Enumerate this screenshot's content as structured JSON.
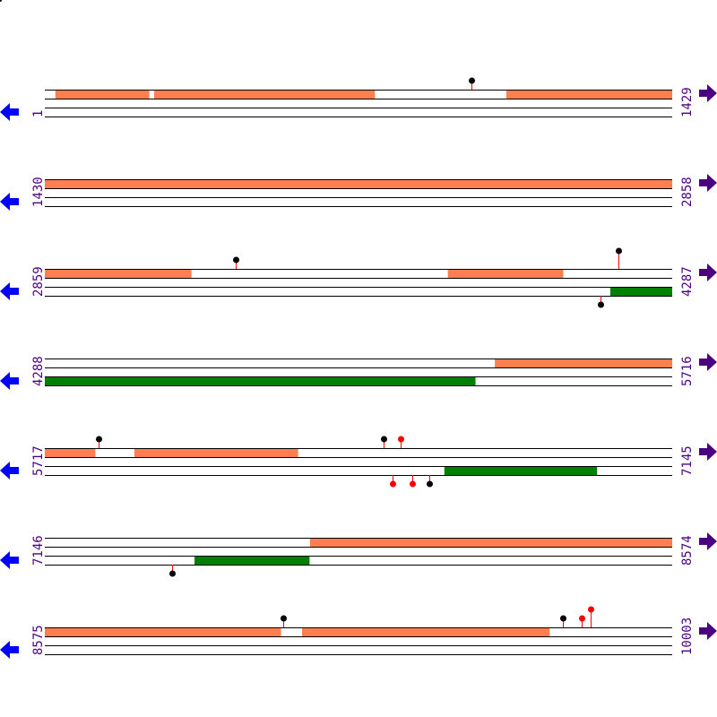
{
  "colors": {
    "forward_feature": "#ff7f50",
    "reverse_feature": "#008000",
    "line": "#000000",
    "stem": "#ff0000",
    "marker_black": "#000000",
    "marker_red": "#ff0000",
    "label": "#4b0082",
    "left_arrow": "#0000ff",
    "right_arrow": "#4b0082"
  },
  "icons": {
    "left": "arrow-left-icon",
    "right": "arrow-right-icon"
  },
  "rows": [
    {
      "start": "1",
      "end": "1429",
      "s": 1,
      "e": 1429,
      "forward": [
        [
          25,
          238
        ],
        [
          250,
          752
        ],
        [
          1052,
          1429
        ]
      ],
      "reverse": [],
      "markers": [
        {
          "pos": 973,
          "strand": "top",
          "color": "black",
          "tall": false
        }
      ]
    },
    {
      "start": "1430",
      "end": "2858",
      "s": 1430,
      "e": 2858,
      "forward": [
        [
          1430,
          2858
        ]
      ],
      "reverse": [],
      "markers": []
    },
    {
      "start": "2859",
      "end": "4287",
      "s": 2859,
      "e": 4287,
      "forward": [
        [
          2859,
          3192
        ],
        [
          3777,
          4039
        ]
      ],
      "reverse": [
        [
          4147,
          4287
        ]
      ],
      "markers": [
        {
          "pos": 3294,
          "strand": "top",
          "color": "black",
          "tall": false
        },
        {
          "pos": 4165,
          "strand": "top",
          "color": "black",
          "tall": true
        },
        {
          "pos": 4124,
          "strand": "bottom",
          "color": "black",
          "tall": false
        }
      ]
    },
    {
      "start": "4288",
      "end": "5716",
      "s": 4288,
      "e": 5716,
      "forward": [
        [
          5313,
          5716
        ]
      ],
      "reverse": [
        [
          4288,
          5268
        ]
      ],
      "markers": []
    },
    {
      "start": "5717",
      "end": "7145",
      "s": 5717,
      "e": 7145,
      "forward": [
        [
          5717,
          5831
        ],
        [
          5921,
          6293
        ]
      ],
      "reverse": [
        [
          6627,
          6974
        ]
      ],
      "markers": [
        {
          "pos": 5839,
          "strand": "top",
          "color": "black",
          "tall": false
        },
        {
          "pos": 6489,
          "strand": "top",
          "color": "black",
          "tall": false
        },
        {
          "pos": 6527,
          "strand": "top",
          "color": "red",
          "tall": false
        },
        {
          "pos": 6509,
          "strand": "bottom",
          "color": "red",
          "tall": false
        },
        {
          "pos": 6554,
          "strand": "bottom",
          "color": "red",
          "tall": false
        },
        {
          "pos": 6593,
          "strand": "bottom",
          "color": "black",
          "tall": false
        }
      ]
    },
    {
      "start": "7146",
      "end": "8574",
      "s": 7146,
      "e": 8574,
      "forward": [
        [
          7750,
          8574
        ]
      ],
      "reverse": [
        [
          7487,
          7748
        ]
      ],
      "markers": [
        {
          "pos": 7436,
          "strand": "bottom",
          "color": "black",
          "tall": false
        }
      ]
    },
    {
      "start": "8575",
      "end": "10003",
      "s": 8575,
      "e": 10003,
      "forward": [
        [
          8575,
          9112
        ],
        [
          9161,
          9724
        ]
      ],
      "reverse": [],
      "markers": [
        {
          "pos": 9118,
          "strand": "top",
          "color": "black",
          "tall": false
        },
        {
          "pos": 9755,
          "strand": "top",
          "color": "black",
          "tall": false
        },
        {
          "pos": 9798,
          "strand": "top",
          "color": "red",
          "tall": false
        },
        {
          "pos": 9818,
          "strand": "top",
          "color": "red",
          "tall": true
        }
      ]
    }
  ]
}
